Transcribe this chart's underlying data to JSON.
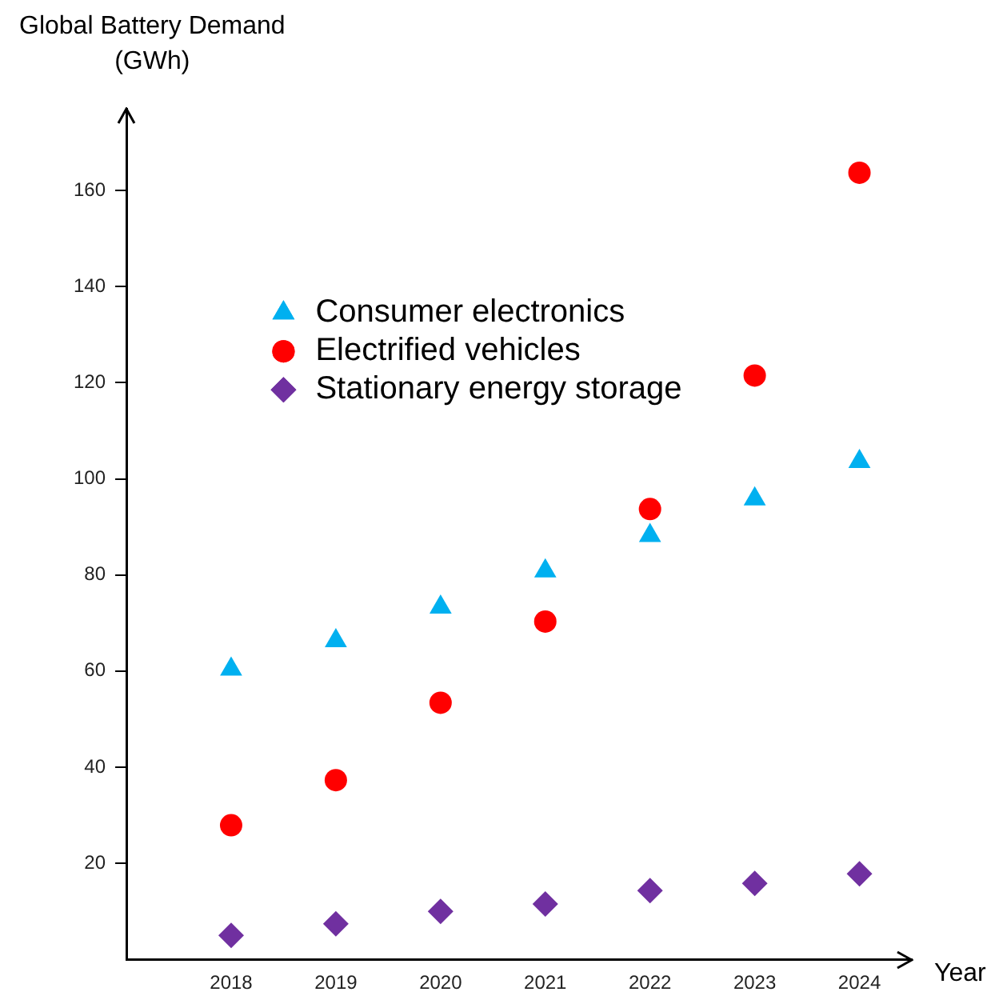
{
  "chart_data": {
    "type": "scatter",
    "ylabel": "Global Battery Demand\n(GWh)",
    "xlabel": "Year",
    "x": [
      2018,
      2019,
      2020,
      2021,
      2022,
      2023,
      2024
    ],
    "series": [
      {
        "name": "Consumer electronics",
        "color": "#00b0f0",
        "marker": "triangle",
        "values": [
          60.4,
          66.3,
          73.3,
          80.8,
          88.2,
          95.8,
          103.6
        ]
      },
      {
        "name": "Electrified vehicles",
        "color": "#ff0000",
        "marker": "circle",
        "values": [
          27.9,
          37.3,
          53.4,
          70.3,
          93.7,
          121.5,
          163.7
        ]
      },
      {
        "name": "Stationary energy storage",
        "color": "#7030a0",
        "marker": "diamond",
        "values": [
          5.0,
          7.4,
          10.0,
          11.5,
          14.3,
          15.8,
          17.8
        ]
      }
    ],
    "xlim": [
      2017,
      2024.5
    ],
    "xticks": [
      2018,
      2019,
      2020,
      2021,
      2022,
      2023,
      2024
    ],
    "ylim": [
      0,
      177
    ],
    "yticks": [
      20,
      40,
      60,
      80,
      100,
      120,
      140,
      160
    ],
    "grid": false,
    "legend": "top left"
  }
}
